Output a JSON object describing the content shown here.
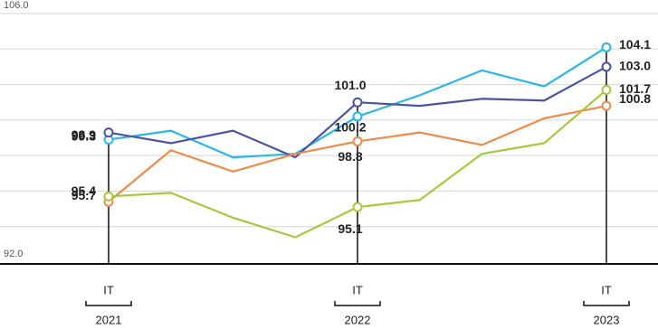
{
  "chart_data": {
    "type": "line",
    "categories": [
      "IT",
      null,
      null,
      null,
      "IT",
      null,
      null,
      null,
      "IT"
    ],
    "years": [
      "2021",
      "2022",
      "2023"
    ],
    "ylim": [
      92.0,
      106.0
    ],
    "yticks": [
      {
        "value": 92,
        "label": "92.0"
      },
      94,
      96,
      98,
      100,
      102,
      104,
      {
        "value": 106,
        "label": "106.0"
      }
    ],
    "grid": true,
    "series": [
      {
        "color": "#29b6e8",
        "values": [
          98.9,
          99.4,
          97.9,
          98.1,
          100.2,
          101.4,
          102.8,
          101.9,
          104.1
        ],
        "value_labels": [
          "98.9",
          null,
          null,
          null,
          "100.2",
          null,
          null,
          null,
          "104.1"
        ]
      },
      {
        "color": "#4a55a2",
        "values": [
          99.3,
          98.7,
          99.4,
          97.9,
          101.0,
          100.8,
          101.2,
          101.1,
          103.0
        ],
        "value_labels": [
          "99.3",
          null,
          null,
          null,
          "101.0",
          null,
          null,
          null,
          "103.0"
        ]
      },
      {
        "color": "#f08a4b",
        "values": [
          95.4,
          98.3,
          97.1,
          98.1,
          98.8,
          99.3,
          98.6,
          100.1,
          100.8
        ],
        "value_labels": [
          "95.4",
          null,
          null,
          null,
          "98.8",
          null,
          null,
          null,
          "100.8"
        ]
      },
      {
        "color": "#a8c73a",
        "values": [
          95.7,
          95.9,
          94.5,
          93.4,
          95.1,
          95.5,
          98.1,
          98.7,
          101.7
        ],
        "value_labels": [
          "95.7",
          null,
          null,
          null,
          "95.1",
          null,
          null,
          null,
          "101.7"
        ]
      }
    ]
  }
}
